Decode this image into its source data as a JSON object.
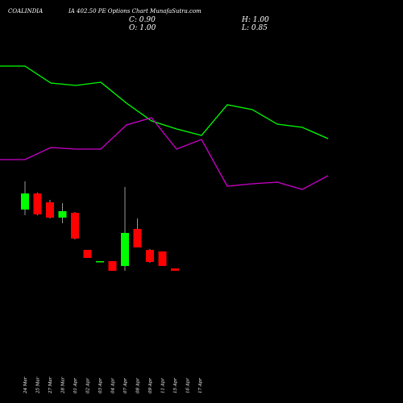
{
  "header": {
    "symbol": "COALINDIA",
    "title": "IA 402.50 PE Options Chart MunafaSutra.com",
    "close": "C: 0.90",
    "open": "O: 1.00",
    "high": "H: 1.00",
    "low": "L: 0.85"
  },
  "colors": {
    "background": "#000000",
    "up": "#00ff00",
    "down": "#ff0000",
    "line_green": "#00ff00",
    "line_magenta": "#cc00cc",
    "wick": "#ffffff",
    "text": "#ffffff"
  },
  "chart_data": [
    {
      "type": "line",
      "x": [
        "24 Mar",
        "25 Mar",
        "27 Mar",
        "28 Mar",
        "01 Apr",
        "02 Apr",
        "03 Apr",
        "04 Apr",
        "07 Apr",
        "08 Apr",
        "09 Apr",
        "11 Apr",
        "15 Apr",
        "16 Apr",
        "17 Apr"
      ],
      "series": [
        {
          "name": "",
          "color": "#00ff00",
          "values": [
            82,
            82,
            103,
            106,
            102,
            128,
            150,
            160,
            168,
            130,
            136,
            154,
            158,
            172,
            185
          ]
        },
        {
          "name": "",
          "color": "#cc00cc",
          "values": [
            198,
            198,
            183,
            185,
            185,
            155,
            146,
            185,
            173,
            231,
            228,
            226,
            235,
            218,
            205
          ]
        }
      ],
      "y_scale": "unlabeled, inverted (higher value drawn lower)",
      "grid": false,
      "legend": "none"
    },
    {
      "type": "candlestick",
      "x": [
        "24 Mar",
        "25 Mar",
        "27 Mar",
        "28 Mar",
        "01 Apr",
        "02 Apr",
        "03 Apr",
        "04 Apr",
        "07 Apr",
        "08 Apr",
        "09 Apr",
        "11 Apr",
        "15 Apr",
        "16 Apr",
        "17 Apr"
      ],
      "candles": [
        {
          "open": 7.0,
          "close": 9.0,
          "high": 10.5,
          "low": 6.3
        },
        {
          "open": 9.0,
          "close": 6.4,
          "high": 9.1,
          "low": 6.3
        },
        {
          "open": 7.9,
          "close": 6.0,
          "high": 8.2,
          "low": 5.9
        },
        {
          "open": 6.0,
          "close": 6.8,
          "high": 7.8,
          "low": 5.3
        },
        {
          "open": 6.6,
          "close": 3.4,
          "high": 6.7,
          "low": 3.3
        },
        {
          "open": 2.0,
          "close": 1.0,
          "high": 2.0,
          "low": 1.0
        },
        {
          "open": 0.6,
          "close": 0.6,
          "high": 0.6,
          "low": 0.6
        },
        {
          "open": 0.6,
          "close": -0.6,
          "high": 0.6,
          "low": -0.6
        },
        {
          "open": 0.0,
          "close": 4.1,
          "high": 9.8,
          "low": -0.6
        },
        {
          "open": 4.6,
          "close": 2.3,
          "high": 5.9,
          "low": 2.3
        },
        {
          "open": 2.0,
          "close": 0.5,
          "high": 2.1,
          "low": 0.4
        },
        {
          "open": 1.8,
          "close": 0.0,
          "high": 1.8,
          "low": 0.0
        },
        {
          "open": -0.3,
          "close": -0.6,
          "high": -0.3,
          "low": -0.6
        }
      ],
      "candle_x_index": [
        0,
        1,
        2,
        3,
        4,
        5,
        6,
        7,
        8,
        9,
        10,
        11,
        12
      ],
      "y_scale": "unlabeled price",
      "grid": false
    }
  ],
  "x_labels": [
    "24 Mar",
    "25 Mar",
    "27 Mar",
    "28 Mar",
    "01 Apr",
    "02 Apr",
    "03 Apr",
    "04 Apr",
    "07 Apr",
    "08 Apr",
    "09 Apr",
    "11 Apr",
    "15 Apr",
    "16 Apr",
    "17 Apr"
  ]
}
